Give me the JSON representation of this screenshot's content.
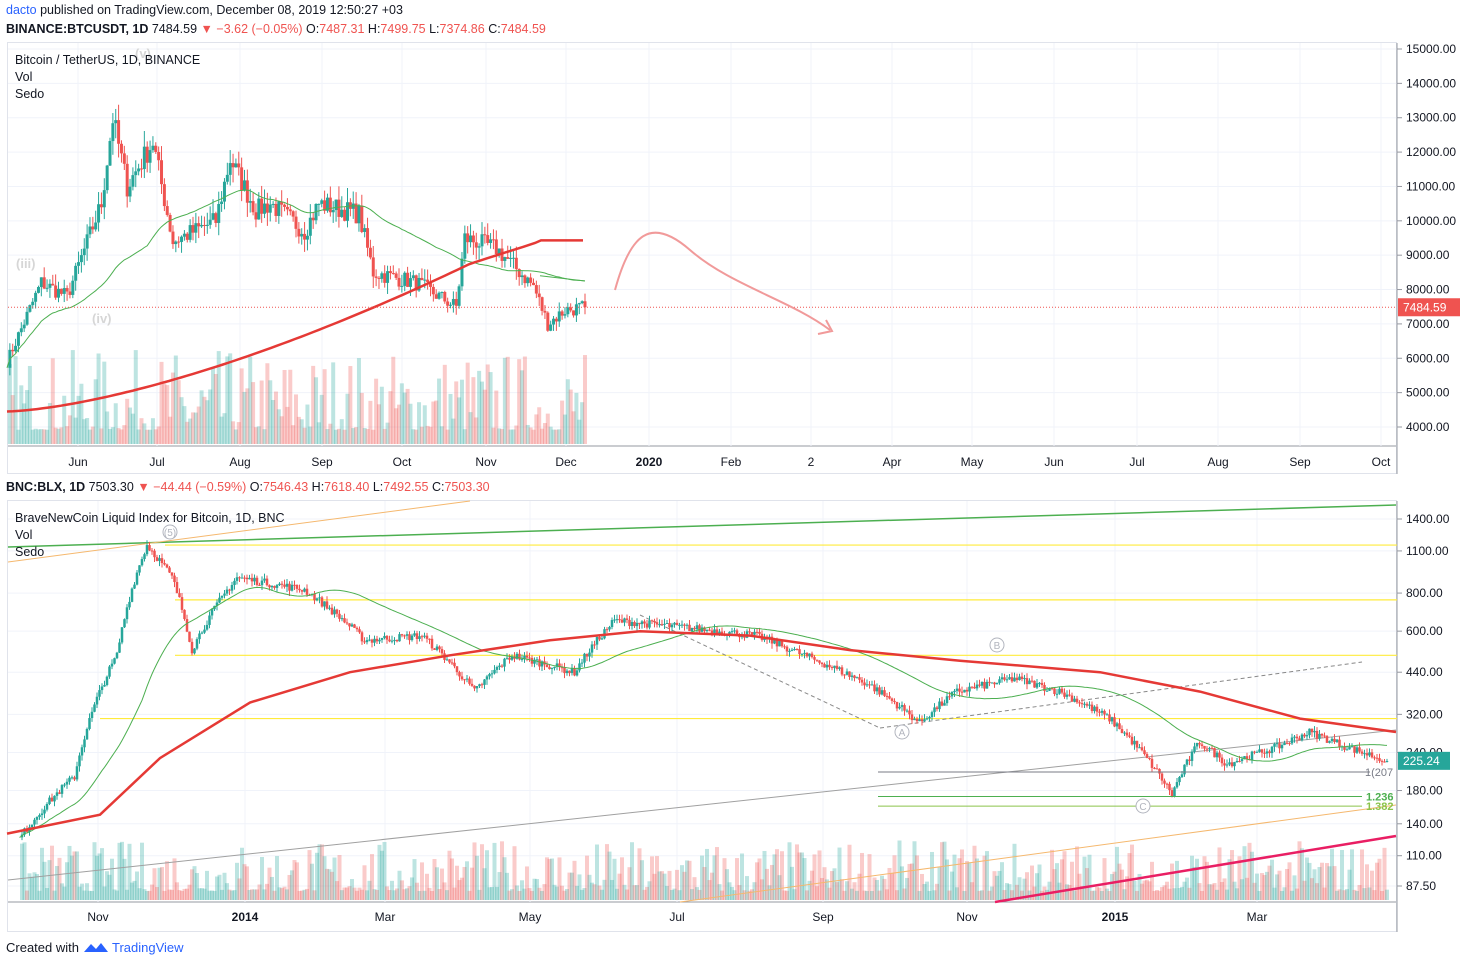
{
  "header": {
    "user": "dacto",
    "published_text": "published on TradingView.com, December 08, 2019 12:50:27 +03"
  },
  "top_quote": {
    "symbol": "BINANCE:BTCUSDT, 1D",
    "last": "7484.59",
    "arrow": "▼",
    "change": "−3.62 (−0.05%)",
    "o_label": "O:",
    "o": "7487.31",
    "h_label": "H:",
    "h": "7499.75",
    "l_label": "L:",
    "l": "7374.86",
    "c_label": "C:",
    "c": "7484.59"
  },
  "bottom_quote": {
    "symbol": "BNC:BLX, 1D",
    "last": "7503.30",
    "arrow": "▼",
    "change": "−44.44 (−0.59%)",
    "o_label": "O:",
    "o": "7546.43",
    "h_label": "H:",
    "h": "7618.40",
    "l_label": "L:",
    "l": "7492.55",
    "c_label": "C:",
    "c": "7503.30"
  },
  "top_legend": {
    "title": "Bitcoin / TetherUS, 1D, BINANCE",
    "vol": "Vol",
    "sedo": "Sedo"
  },
  "bottom_legend": {
    "title": "BraveNewCoin Liquid Index for Bitcoin, 1D, BNC",
    "vol": "Vol",
    "sedo": "Sedo"
  },
  "footer": {
    "created_with": "Created with",
    "brand": "TradingView"
  },
  "colors": {
    "up": "#26a69a",
    "down": "#ef5350",
    "ma_fast": "#4caf50",
    "ma_slow": "#e53935",
    "price_tag": "#ef5350",
    "price_tag_bottom": "#26a69a",
    "fib_line": "#ffeb3b",
    "projection": "#f19a9a",
    "trend_upper": "#4caf50",
    "trend_lower": "#e91e63"
  },
  "chart_data": [
    {
      "type": "candlestick",
      "title": "Bitcoin / TetherUS, 1D, BINANCE",
      "y_scale": "linear",
      "y_ticks": [
        "15000.00",
        "14000.00",
        "13000.00",
        "12000.00",
        "11000.00",
        "10000.00",
        "9000.00",
        "8000.00",
        "7000.00",
        "6000.00",
        "5000.00",
        "4000.00"
      ],
      "ylim": [
        3500,
        15100
      ],
      "x_ticks": [
        "Jun",
        "Jul",
        "Aug",
        "Sep",
        "Oct",
        "Nov",
        "Dec",
        "2020",
        "Feb",
        "2",
        "Apr",
        "May",
        "Jun",
        "Jul",
        "Aug",
        "Sep",
        "Oct"
      ],
      "last_price_label": "7484.59",
      "wave_labels": [
        "(iii)",
        "(iv)",
        "(v)"
      ],
      "approx_close_path": [
        [
          "2019-05-20",
          5900
        ],
        [
          "2019-06-01",
          8200
        ],
        [
          "2019-06-10",
          7800
        ],
        [
          "2019-06-22",
          10500
        ],
        [
          "2019-06-26",
          13000
        ],
        [
          "2019-07-01",
          11000
        ],
        [
          "2019-07-10",
          12300
        ],
        [
          "2019-07-17",
          9400
        ],
        [
          "2019-08-01",
          10000
        ],
        [
          "2019-08-06",
          11800
        ],
        [
          "2019-08-15",
          10300
        ],
        [
          "2019-08-20",
          10500
        ],
        [
          "2019-09-01",
          9700
        ],
        [
          "2019-09-06",
          10500
        ],
        [
          "2019-09-20",
          10200
        ],
        [
          "2019-09-25",
          8500
        ],
        [
          "2019-10-10",
          8200
        ],
        [
          "2019-10-24",
          7500
        ],
        [
          "2019-10-27",
          9500
        ],
        [
          "2019-11-07",
          9200
        ],
        [
          "2019-11-20",
          8100
        ],
        [
          "2019-11-25",
          7000
        ],
        [
          "2019-12-01",
          7400
        ],
        [
          "2019-12-08",
          7485
        ]
      ],
      "series": [
        {
          "name": "Vol",
          "kind": "volume"
        },
        {
          "name": "Sedo",
          "kind": "moving averages"
        }
      ]
    },
    {
      "type": "candlestick",
      "title": "BraveNewCoin Liquid Index for Bitcoin, 1D, BNC",
      "y_scale": "log",
      "y_ticks": [
        "1400.00",
        "1100.00",
        "800.00",
        "600.00",
        "440.00",
        "320.00",
        "240.00",
        "180.00",
        "140.00",
        "110.00",
        "87.50"
      ],
      "x_ticks": [
        "Nov",
        "2014",
        "Mar",
        "May",
        "Jul",
        "Sep",
        "Nov",
        "2015",
        "Mar"
      ],
      "last_price_label": "225.24",
      "wave_labels": [
        "(5)",
        "A",
        "B",
        "C"
      ],
      "fib_labels": [
        "1(207",
        "1.236",
        "1.382"
      ],
      "approx_close_path": [
        [
          "2013-10-10",
          125
        ],
        [
          "2013-11-01",
          200
        ],
        [
          "2013-11-18",
          500
        ],
        [
          "2013-11-30",
          1150
        ],
        [
          "2013-12-10",
          900
        ],
        [
          "2013-12-18",
          520
        ],
        [
          "2014-01-05",
          900
        ],
        [
          "2014-02-01",
          820
        ],
        [
          "2014-02-25",
          560
        ],
        [
          "2014-03-20",
          580
        ],
        [
          "2014-04-10",
          380
        ],
        [
          "2014-04-25",
          500
        ],
        [
          "2014-05-20",
          440
        ],
        [
          "2014-06-05",
          650
        ],
        [
          "2014-07-01",
          620
        ],
        [
          "2014-08-01",
          580
        ],
        [
          "2014-08-20",
          500
        ],
        [
          "2014-09-15",
          400
        ],
        [
          "2014-10-05",
          300
        ],
        [
          "2014-10-20",
          380
        ],
        [
          "2014-11-12",
          420
        ],
        [
          "2014-11-30",
          380
        ],
        [
          "2014-12-20",
          310
        ],
        [
          "2015-01-14",
          175
        ],
        [
          "2015-01-25",
          260
        ],
        [
          "2015-02-05",
          220
        ],
        [
          "2015-02-25",
          250
        ],
        [
          "2015-03-10",
          280
        ],
        [
          "2015-03-25",
          250
        ],
        [
          "2015-04-10",
          225
        ]
      ],
      "series": [
        {
          "name": "Vol",
          "kind": "volume"
        },
        {
          "name": "Sedo",
          "kind": "moving averages"
        }
      ]
    }
  ]
}
